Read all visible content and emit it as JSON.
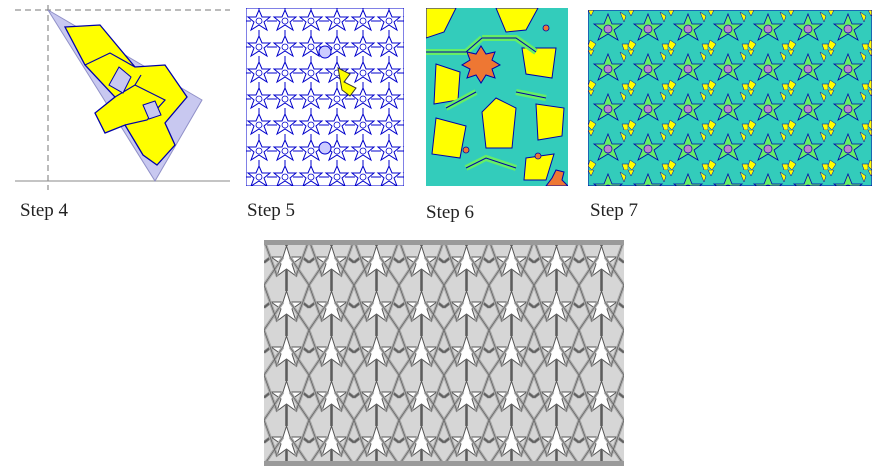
{
  "captions": {
    "step4": "Step 4",
    "step5": "Step 5",
    "step6": "Step 6",
    "step7": "Step 7"
  },
  "colors": {
    "region_fill": "#c8c8f0",
    "motif_yellow": "#ffff00",
    "line_blue": "#0000cc",
    "teal": "#33ccbb",
    "green": "#66ee66",
    "orange": "#ee7733",
    "gray_band": "#b8b8b8",
    "gray_outline": "#555555"
  }
}
